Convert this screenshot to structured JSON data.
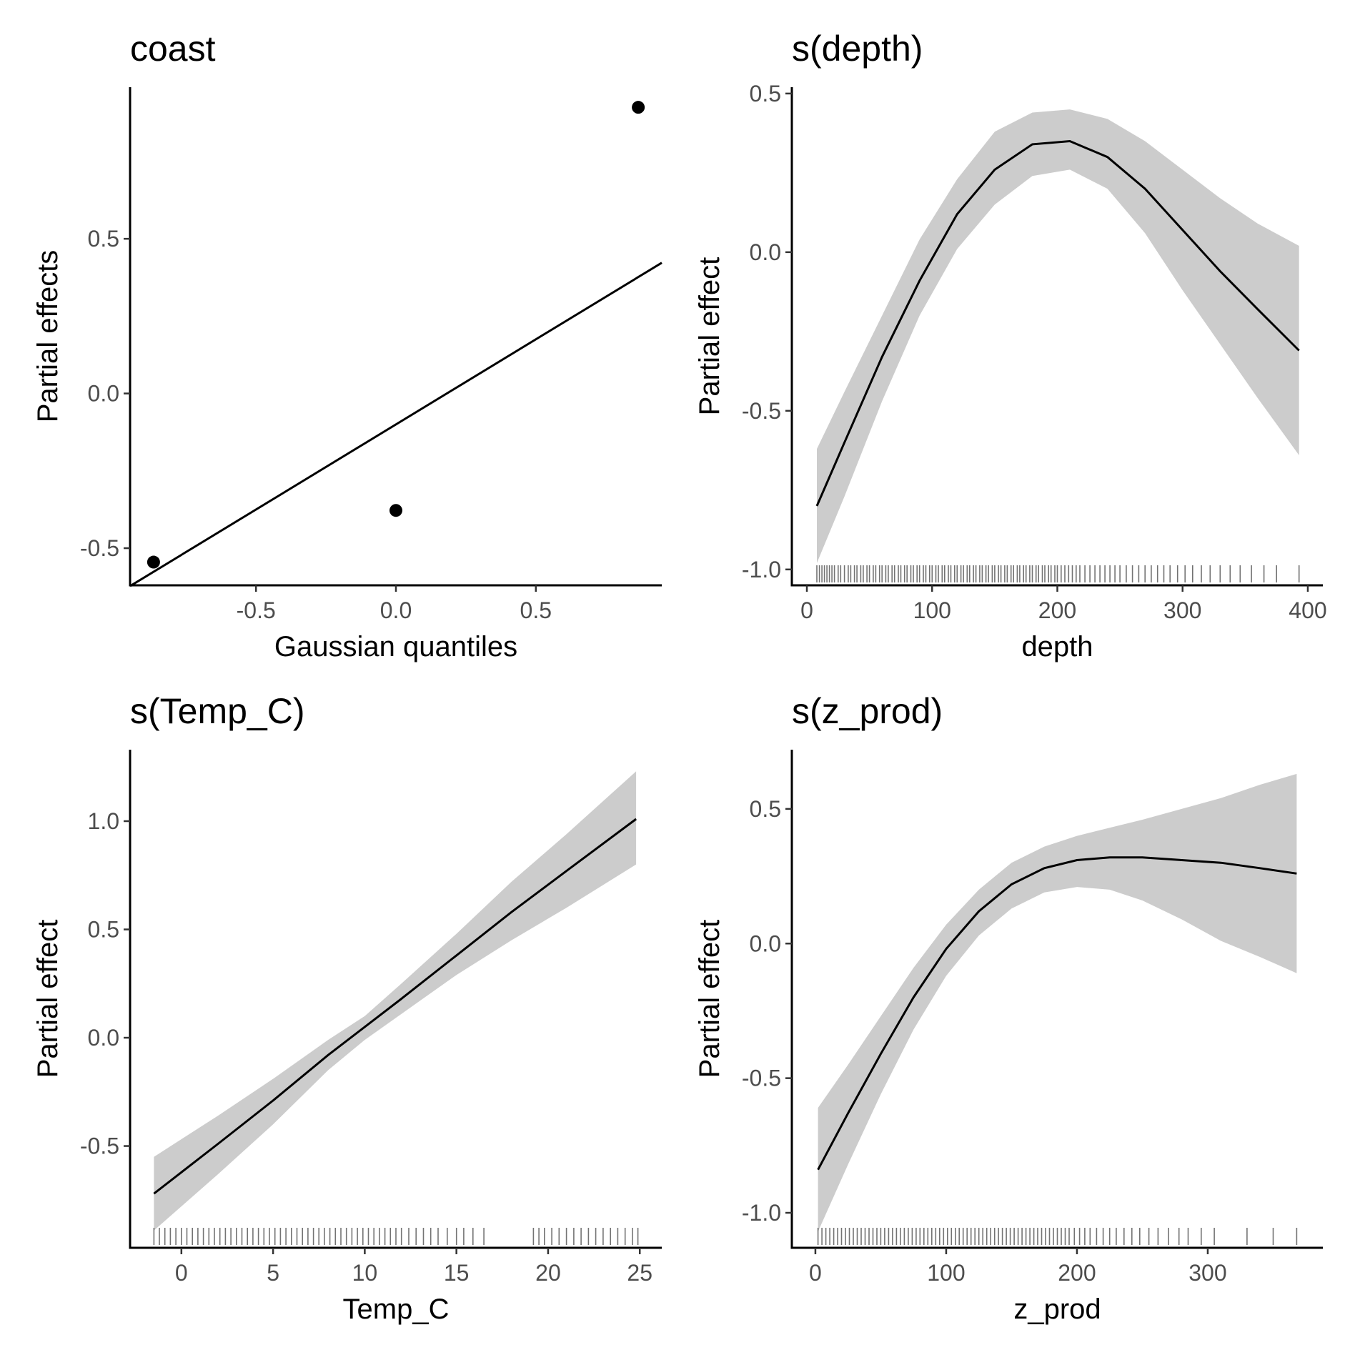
{
  "chart_data": [
    {
      "id": "coast",
      "type": "scatter",
      "title": "coast",
      "xlabel": "Gaussian quantiles",
      "ylabel": "Partial effects",
      "xlim": [
        -0.95,
        0.95
      ],
      "ylim": [
        -0.62,
        0.99
      ],
      "xticks": [
        -0.5,
        0.0,
        0.5
      ],
      "xtick_labels": [
        "-0.5",
        "0.0",
        "0.5"
      ],
      "yticks": [
        -0.5,
        0.0,
        0.5
      ],
      "ytick_labels": [
        "-0.5",
        "0.0",
        "0.5"
      ],
      "points": [
        {
          "x": -0.866,
          "y": -0.545
        },
        {
          "x": 0.0,
          "y": -0.378
        },
        {
          "x": 0.866,
          "y": 0.925
        }
      ],
      "reference_line": {
        "intercept": -0.1,
        "slope": 0.55
      },
      "grid": false
    },
    {
      "id": "depth",
      "type": "line",
      "title": "s(depth)",
      "xlabel": "depth",
      "ylabel": "Partial effect",
      "xlim": [
        -12,
        412
      ],
      "ylim": [
        -1.05,
        0.52
      ],
      "xticks": [
        0,
        100,
        200,
        300,
        400
      ],
      "xtick_labels": [
        "0",
        "100",
        "200",
        "300",
        "400"
      ],
      "yticks": [
        -1.0,
        -0.5,
        0.0,
        0.5
      ],
      "ytick_labels": [
        "-1.0",
        "-0.5",
        "0.0",
        "0.5"
      ],
      "x": [
        8,
        30,
        60,
        90,
        120,
        150,
        180,
        210,
        240,
        270,
        300,
        330,
        360,
        393
      ],
      "y": [
        -0.8,
        -0.6,
        -0.33,
        -0.09,
        0.12,
        0.26,
        0.34,
        0.35,
        0.3,
        0.2,
        0.07,
        -0.06,
        -0.18,
        -0.31
      ],
      "upper": [
        -0.62,
        -0.44,
        -0.2,
        0.04,
        0.23,
        0.38,
        0.44,
        0.45,
        0.42,
        0.35,
        0.26,
        0.17,
        0.09,
        0.02
      ],
      "lower": [
        -0.98,
        -0.77,
        -0.47,
        -0.2,
        0.01,
        0.15,
        0.24,
        0.26,
        0.2,
        0.06,
        -0.12,
        -0.29,
        -0.46,
        -0.64
      ],
      "rug": [
        8,
        10,
        12,
        14,
        16,
        18,
        20,
        22,
        25,
        27,
        30,
        33,
        35,
        38,
        40,
        43,
        45,
        48,
        50,
        53,
        55,
        58,
        60,
        63,
        65,
        68,
        70,
        73,
        75,
        78,
        80,
        83,
        85,
        88,
        90,
        93,
        95,
        98,
        100,
        103,
        105,
        108,
        110,
        113,
        115,
        118,
        120,
        123,
        125,
        128,
        130,
        133,
        135,
        138,
        140,
        143,
        145,
        148,
        150,
        153,
        155,
        158,
        160,
        163,
        165,
        168,
        170,
        173,
        175,
        178,
        180,
        183,
        185,
        188,
        190,
        193,
        195,
        198,
        200,
        203,
        206,
        209,
        212,
        215,
        218,
        222,
        226,
        230,
        234,
        238,
        242,
        246,
        250,
        255,
        260,
        265,
        270,
        275,
        280,
        285,
        290,
        296,
        302,
        308,
        315,
        322,
        330,
        338,
        346,
        355,
        365,
        375,
        393
      ],
      "grid": false
    },
    {
      "id": "temp",
      "type": "line",
      "title": "s(Temp_C)",
      "xlabel": "Temp_C",
      "ylabel": "Partial effect",
      "xlim": [
        -2.8,
        26.2
      ],
      "ylim": [
        -0.97,
        1.33
      ],
      "xticks": [
        0,
        5,
        10,
        15,
        20,
        25
      ],
      "xtick_labels": [
        "0",
        "5",
        "10",
        "15",
        "20",
        "25"
      ],
      "yticks": [
        -0.5,
        0.0,
        0.5,
        1.0
      ],
      "ytick_labels": [
        "-0.5",
        "0.0",
        "0.5",
        "1.0"
      ],
      "x": [
        -1.5,
        2,
        5,
        8,
        10,
        12,
        15,
        18,
        21,
        24.8
      ],
      "y": [
        -0.72,
        -0.49,
        -0.29,
        -0.08,
        0.05,
        0.18,
        0.38,
        0.58,
        0.77,
        1.01
      ],
      "upper": [
        -0.55,
        -0.36,
        -0.19,
        -0.01,
        0.1,
        0.25,
        0.48,
        0.72,
        0.94,
        1.23
      ],
      "lower": [
        -0.89,
        -0.63,
        -0.4,
        -0.15,
        -0.01,
        0.11,
        0.29,
        0.45,
        0.6,
        0.8
      ],
      "rug": [
        -1.5,
        -1.2,
        -0.9,
        -0.6,
        -0.3,
        0,
        0.3,
        0.6,
        0.9,
        1.2,
        1.5,
        1.8,
        2.1,
        2.4,
        2.7,
        3,
        3.3,
        3.6,
        3.9,
        4.2,
        4.5,
        4.8,
        5.1,
        5.4,
        5.7,
        6,
        6.3,
        6.6,
        6.9,
        7.2,
        7.5,
        7.8,
        8.1,
        8.4,
        8.7,
        9,
        9.3,
        9.6,
        9.9,
        10.2,
        10.5,
        10.8,
        11.1,
        11.4,
        11.7,
        12,
        12.4,
        12.8,
        13.2,
        13.6,
        14,
        14.5,
        15,
        15.4,
        15.9,
        16.5,
        19.2,
        19.5,
        19.8,
        20.2,
        20.6,
        21,
        21.4,
        21.8,
        22.2,
        22.6,
        23,
        23.4,
        23.8,
        24.2,
        24.6,
        24.9
      ],
      "grid": false
    },
    {
      "id": "zprod",
      "type": "line",
      "title": "s(z_prod)",
      "xlabel": "z_prod",
      "ylabel": "Partial effect",
      "xlim": [
        -18,
        388
      ],
      "ylim": [
        -1.13,
        0.72
      ],
      "xticks": [
        0,
        100,
        200,
        300
      ],
      "xtick_labels": [
        "0",
        "100",
        "200",
        "300"
      ],
      "yticks": [
        -1.0,
        -0.5,
        0.0,
        0.5
      ],
      "ytick_labels": [
        "-1.0",
        "-0.5",
        "0.0",
        "0.5"
      ],
      "x": [
        2,
        25,
        50,
        75,
        100,
        125,
        150,
        175,
        200,
        225,
        250,
        280,
        310,
        340,
        368
      ],
      "y": [
        -0.84,
        -0.63,
        -0.41,
        -0.2,
        -0.02,
        0.12,
        0.22,
        0.28,
        0.31,
        0.32,
        0.32,
        0.31,
        0.3,
        0.28,
        0.26
      ],
      "upper": [
        -0.61,
        -0.45,
        -0.27,
        -0.09,
        0.07,
        0.2,
        0.3,
        0.36,
        0.4,
        0.43,
        0.46,
        0.5,
        0.54,
        0.59,
        0.63
      ],
      "lower": [
        -1.07,
        -0.82,
        -0.56,
        -0.32,
        -0.12,
        0.03,
        0.13,
        0.19,
        0.21,
        0.2,
        0.16,
        0.09,
        0.01,
        -0.05,
        -0.11
      ],
      "rug": [
        2,
        5,
        8,
        11,
        14,
        17,
        20,
        23,
        26,
        29,
        32,
        35,
        38,
        41,
        44,
        47,
        50,
        53,
        56,
        59,
        62,
        65,
        68,
        71,
        74,
        77,
        80,
        83,
        86,
        89,
        92,
        95,
        98,
        101,
        104,
        107,
        110,
        113,
        116,
        119,
        122,
        125,
        128,
        131,
        134,
        137,
        140,
        143,
        146,
        149,
        152,
        155,
        158,
        161,
        164,
        167,
        170,
        173,
        176,
        179,
        182,
        185,
        188,
        191,
        194,
        198,
        202,
        206,
        210,
        215,
        220,
        225,
        230,
        236,
        242,
        248,
        255,
        262,
        270,
        278,
        285,
        295,
        305,
        330,
        350,
        368
      ],
      "grid": false
    }
  ]
}
